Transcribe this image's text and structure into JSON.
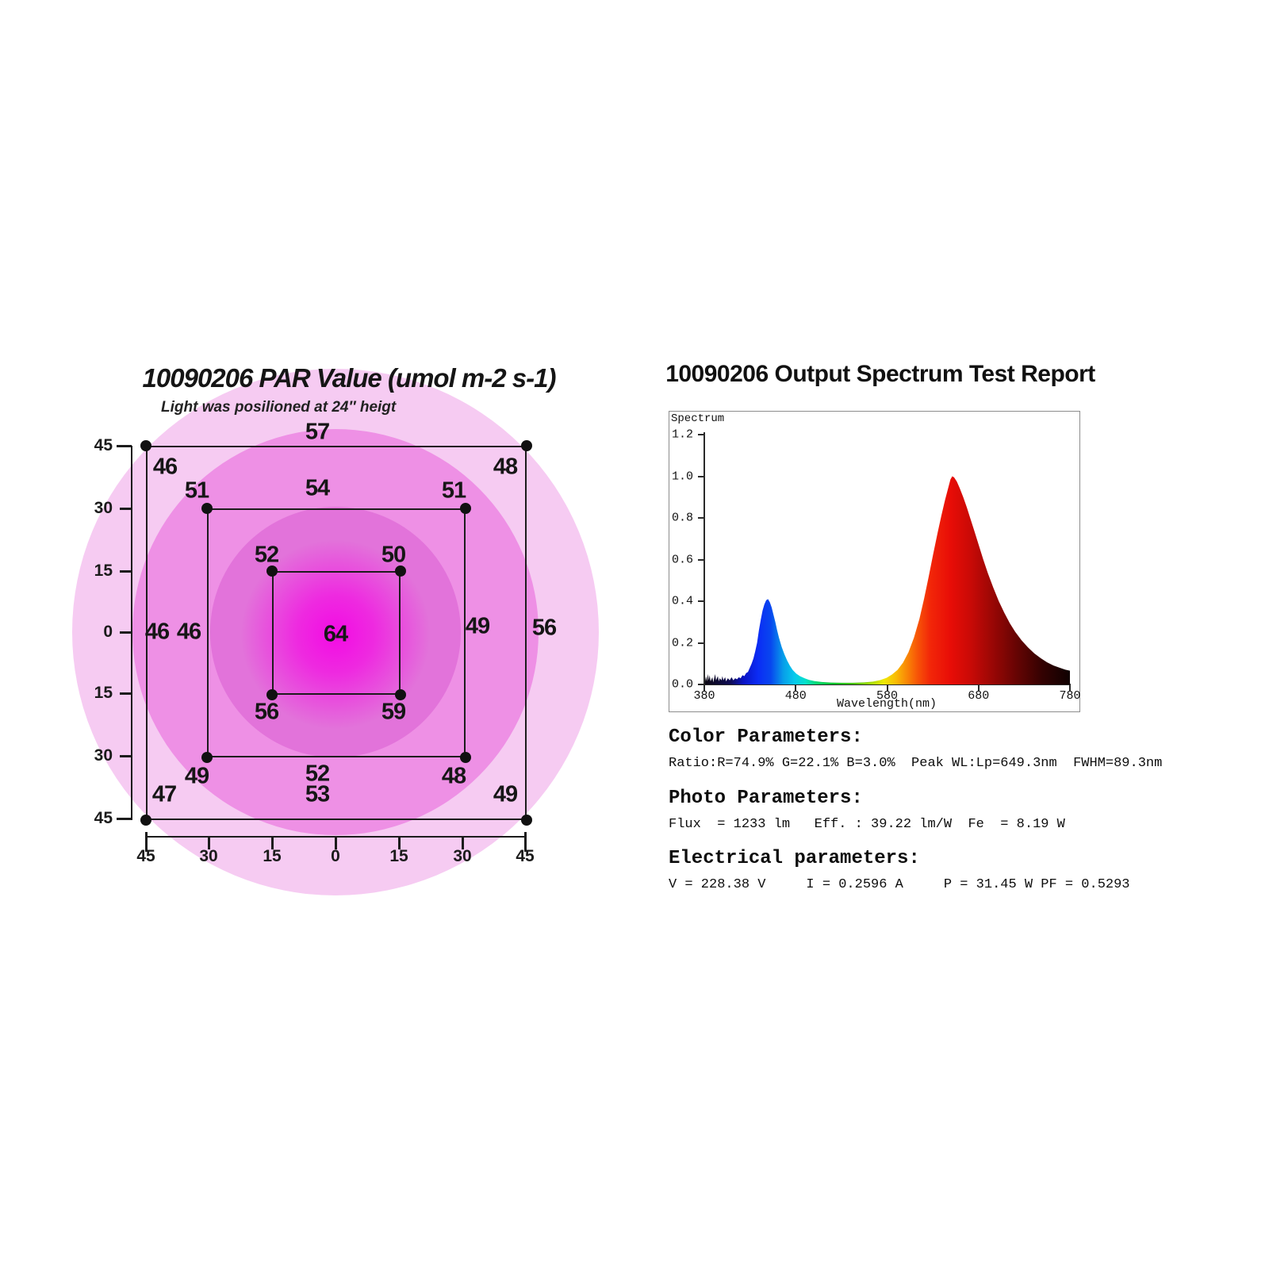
{
  "page": {
    "background": "#ffffff"
  },
  "par": {
    "title": "10090206 PAR Value (umol m-2 s-1)",
    "subtitle": "Light was posilioned at 24″ heigt",
    "y_axis_ticks": [
      "45",
      "30",
      "15",
      "0",
      "15",
      "30",
      "45"
    ],
    "x_axis_ticks": [
      "45",
      "30",
      "15",
      "0",
      "15",
      "30",
      "45"
    ],
    "ring_colors": [
      "#f6cbf2",
      "#ee90e5",
      "#e273da"
    ],
    "hotspot_color": "#f30be4"
  },
  "spectrum": {
    "title": "10090206 Output Spectrum Test Report",
    "chart_label": "Spectrum",
    "xlabel": "Wavelength(nm)",
    "sections": [
      {
        "heading": "Color Parameters:",
        "body": "Ratio:R=74.9% G=22.1% B=3.0%  Peak WL:Lp=649.3nm  FWHM=89.3nm"
      },
      {
        "heading": "Photo Parameters:",
        "body": "Flux  = 1233 lm   Eff. : 39.22 lm/W  Fe  = 8.19 W"
      },
      {
        "heading": "Electrical parameters:",
        "body": "V = 228.38 V     I = 0.2596 A     P = 31.45 W PF = 0.5293"
      }
    ]
  },
  "chart_data": [
    {
      "type": "heatmap",
      "title": "10090206 PAR Value (umol m-2 s-1)",
      "subtitle": "Light was posilioned at 24″ heigt",
      "units": "umol m-2 s-1",
      "x_ticks": [
        45,
        30,
        15,
        0,
        15,
        30,
        45
      ],
      "y_ticks": [
        45,
        30,
        15,
        0,
        15,
        30,
        45
      ],
      "points": [
        {
          "id": "tl45",
          "x": -45,
          "y": 45,
          "value": "46"
        },
        {
          "id": "top45",
          "x": 0,
          "y": 45,
          "value": "57"
        },
        {
          "id": "tr45",
          "x": 45,
          "y": 45,
          "value": "48"
        },
        {
          "id": "l45",
          "x": -45,
          "y": 0,
          "value": "46"
        },
        {
          "id": "r45",
          "x": 45,
          "y": 0,
          "value": "56"
        },
        {
          "id": "bl45",
          "x": -45,
          "y": -45,
          "value": "47"
        },
        {
          "id": "bottom45",
          "x": 0,
          "y": -45,
          "value": "53"
        },
        {
          "id": "br45",
          "x": 45,
          "y": -45,
          "value": "49"
        },
        {
          "id": "tl30",
          "x": -30,
          "y": 30,
          "value": "51"
        },
        {
          "id": "top30",
          "x": 0,
          "y": 30,
          "value": "54"
        },
        {
          "id": "tr30",
          "x": 30,
          "y": 30,
          "value": "51"
        },
        {
          "id": "l30",
          "x": -30,
          "y": 0,
          "value": "46"
        },
        {
          "id": "r30",
          "x": 30,
          "y": 0,
          "value": "49"
        },
        {
          "id": "bl30",
          "x": -30,
          "y": -30,
          "value": "49"
        },
        {
          "id": "bottom30",
          "x": 0,
          "y": -30,
          "value": "52"
        },
        {
          "id": "br30",
          "x": 30,
          "y": -30,
          "value": "48"
        },
        {
          "id": "tl15",
          "x": -15,
          "y": 15,
          "value": "52"
        },
        {
          "id": "tr15",
          "x": 15,
          "y": 15,
          "value": "50"
        },
        {
          "id": "bl15",
          "x": -15,
          "y": -15,
          "value": "56"
        },
        {
          "id": "br15",
          "x": 15,
          "y": -15,
          "value": "59"
        },
        {
          "id": "c0",
          "x": 0,
          "y": 0,
          "value": "64"
        }
      ]
    },
    {
      "type": "area",
      "title": "Spectrum",
      "xlabel": "Wavelength(nm)",
      "xlim": [
        380,
        780
      ],
      "ylim": [
        0,
        1.2
      ],
      "x_ticks": [
        "380",
        "480",
        "580",
        "680",
        "780"
      ],
      "y_ticks": [
        "1.2",
        "1.0",
        "0.8",
        "0.6",
        "0.4",
        "0.2",
        "0.0"
      ],
      "peaks": [
        {
          "wavelength": 447,
          "intensity": 0.41
        },
        {
          "wavelength": 649.3,
          "intensity": 1.0
        }
      ],
      "series": [
        {
          "name": "Spectrum",
          "points": [
            [
              380,
              0.015
            ],
            [
              381,
              0.04
            ],
            [
              382,
              0.015
            ],
            [
              383,
              0.05
            ],
            [
              384,
              0.02
            ],
            [
              385,
              0.045
            ],
            [
              386,
              0.015
            ],
            [
              388,
              0.035
            ],
            [
              389,
              0.01
            ],
            [
              390,
              0.03
            ],
            [
              391,
              0.05
            ],
            [
              392,
              0.02
            ],
            [
              394,
              0.04
            ],
            [
              395,
              0.015
            ],
            [
              396,
              0.03
            ],
            [
              398,
              0.02
            ],
            [
              399,
              0.04
            ],
            [
              400,
              0.02
            ],
            [
              402,
              0.035
            ],
            [
              403,
              0.015
            ],
            [
              405,
              0.03
            ],
            [
              407,
              0.02
            ],
            [
              409,
              0.035
            ],
            [
              411,
              0.02
            ],
            [
              413,
              0.03
            ],
            [
              415,
              0.025
            ],
            [
              417,
              0.035
            ],
            [
              419,
              0.03
            ],
            [
              421,
              0.045
            ],
            [
              423,
              0.04
            ],
            [
              425,
              0.055
            ],
            [
              427,
              0.06
            ],
            [
              429,
              0.08
            ],
            [
              431,
              0.1
            ],
            [
              433,
              0.125
            ],
            [
              435,
              0.16
            ],
            [
              437,
              0.2
            ],
            [
              439,
              0.26
            ],
            [
              441,
              0.31
            ],
            [
              443,
              0.355
            ],
            [
              445,
              0.385
            ],
            [
              447,
              0.405
            ],
            [
              449,
              0.41
            ],
            [
              451,
              0.395
            ],
            [
              453,
              0.37
            ],
            [
              455,
              0.335
            ],
            [
              457,
              0.3
            ],
            [
              459,
              0.26
            ],
            [
              461,
              0.225
            ],
            [
              464,
              0.18
            ],
            [
              467,
              0.145
            ],
            [
              470,
              0.115
            ],
            [
              473,
              0.09
            ],
            [
              476,
              0.07
            ],
            [
              480,
              0.052
            ],
            [
              484,
              0.04
            ],
            [
              489,
              0.03
            ],
            [
              494,
              0.022
            ],
            [
              500,
              0.016
            ],
            [
              508,
              0.012
            ],
            [
              518,
              0.009
            ],
            [
              530,
              0.008
            ],
            [
              542,
              0.008
            ],
            [
              554,
              0.01
            ],
            [
              564,
              0.014
            ],
            [
              572,
              0.021
            ],
            [
              579,
              0.032
            ],
            [
              585,
              0.048
            ],
            [
              591,
              0.07
            ],
            [
              597,
              0.105
            ],
            [
              603,
              0.155
            ],
            [
              609,
              0.225
            ],
            [
              615,
              0.315
            ],
            [
              620,
              0.41
            ],
            [
              625,
              0.515
            ],
            [
              630,
              0.625
            ],
            [
              635,
              0.73
            ],
            [
              639,
              0.81
            ],
            [
              643,
              0.885
            ],
            [
              646,
              0.935
            ],
            [
              649,
              0.985
            ],
            [
              651,
              1.0
            ],
            [
              653,
              0.995
            ],
            [
              656,
              0.975
            ],
            [
              659,
              0.945
            ],
            [
              663,
              0.9
            ],
            [
              667,
              0.85
            ],
            [
              671,
              0.795
            ],
            [
              675,
              0.74
            ],
            [
              680,
              0.67
            ],
            [
              685,
              0.6
            ],
            [
              690,
              0.535
            ],
            [
              696,
              0.465
            ],
            [
              702,
              0.4
            ],
            [
              708,
              0.345
            ],
            [
              714,
              0.295
            ],
            [
              720,
              0.253
            ],
            [
              727,
              0.212
            ],
            [
              734,
              0.178
            ],
            [
              741,
              0.149
            ],
            [
              748,
              0.126
            ],
            [
              755,
              0.106
            ],
            [
              762,
              0.091
            ],
            [
              769,
              0.08
            ],
            [
              775,
              0.071
            ],
            [
              780,
              0.066
            ]
          ]
        }
      ],
      "color_stops": [
        [
          380,
          "#0b0712"
        ],
        [
          408,
          "#0e0b55"
        ],
        [
          422,
          "#0a13c4"
        ],
        [
          438,
          "#0b2cf5"
        ],
        [
          452,
          "#0847ef"
        ],
        [
          466,
          "#079fe9"
        ],
        [
          478,
          "#06c9ec"
        ],
        [
          490,
          "#06e0cb"
        ],
        [
          502,
          "#09da74"
        ],
        [
          520,
          "#0cc42e"
        ],
        [
          542,
          "#47c512"
        ],
        [
          562,
          "#a8dd0b"
        ],
        [
          576,
          "#eee806"
        ],
        [
          589,
          "#f9bc05"
        ],
        [
          601,
          "#f98806"
        ],
        [
          613,
          "#f75407"
        ],
        [
          627,
          "#f22608"
        ],
        [
          649,
          "#e80d07"
        ],
        [
          670,
          "#cb0a06"
        ],
        [
          695,
          "#9a0705"
        ],
        [
          722,
          "#650403"
        ],
        [
          750,
          "#330202"
        ],
        [
          780,
          "#0f0101"
        ]
      ]
    }
  ]
}
